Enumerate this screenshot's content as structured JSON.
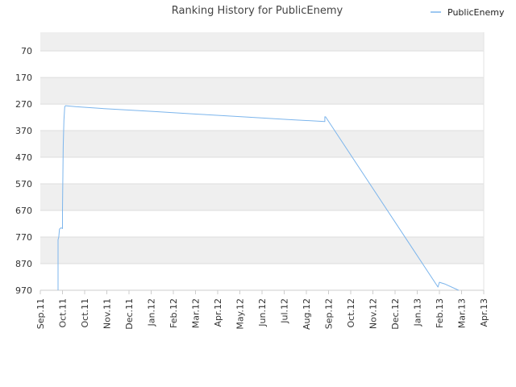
{
  "chart_data": {
    "type": "line",
    "title": "Ranking History for PublicEnemy",
    "xlabel": "",
    "ylabel": "",
    "y_inverted": true,
    "ylim": [
      0,
      970
    ],
    "y_ticks": [
      70,
      170,
      270,
      370,
      470,
      570,
      670,
      770,
      870,
      970
    ],
    "x_tick_labels": [
      "Sep.11",
      "Oct.11",
      "Oct.11",
      "Nov.11",
      "Dec.11",
      "Jan.12",
      "Feb.12",
      "Mar.12",
      "Apr.12",
      "May.12",
      "Jun.12",
      "Jul.12",
      "Aug.12",
      "Sep.12",
      "Oct.12",
      "Nov.12",
      "Dec.12",
      "Jan.13",
      "Feb.13",
      "Mar.13",
      "Apr.13"
    ],
    "x_tick_dates": [
      "2011-09-01",
      "2011-10-01",
      "2011-10-31",
      "2011-11-30",
      "2011-12-30",
      "2012-01-29",
      "2012-02-28",
      "2012-03-29",
      "2012-04-28",
      "2012-05-28",
      "2012-06-27",
      "2012-07-27",
      "2012-08-26",
      "2012-09-25",
      "2012-10-25",
      "2012-11-24",
      "2012-12-24",
      "2013-01-23",
      "2013-02-22",
      "2013-03-24",
      "2013-04-23"
    ],
    "grid": true,
    "legend_position": "top-right",
    "series": [
      {
        "name": "PublicEnemy",
        "color": "#7cb5ec",
        "points": [
          {
            "x": "2011-09-25",
            "y": 970
          },
          {
            "x": "2011-09-25",
            "y": 780
          },
          {
            "x": "2011-09-26",
            "y": 770
          },
          {
            "x": "2011-09-27",
            "y": 740
          },
          {
            "x": "2011-09-29",
            "y": 735
          },
          {
            "x": "2011-10-01",
            "y": 738
          },
          {
            "x": "2011-10-01",
            "y": 670
          },
          {
            "x": "2011-10-02",
            "y": 430
          },
          {
            "x": "2011-10-03",
            "y": 330
          },
          {
            "x": "2011-10-04",
            "y": 280
          },
          {
            "x": "2011-10-05",
            "y": 276
          },
          {
            "x": "2011-10-20",
            "y": 280
          },
          {
            "x": "2011-12-01",
            "y": 288
          },
          {
            "x": "2012-02-01",
            "y": 298
          },
          {
            "x": "2012-04-01",
            "y": 308
          },
          {
            "x": "2012-06-01",
            "y": 318
          },
          {
            "x": "2012-08-01",
            "y": 328
          },
          {
            "x": "2012-09-20",
            "y": 336
          },
          {
            "x": "2012-09-20",
            "y": 318
          },
          {
            "x": "2012-09-21",
            "y": 318
          },
          {
            "x": "2013-02-20",
            "y": 958
          },
          {
            "x": "2013-02-22",
            "y": 940
          },
          {
            "x": "2013-03-01",
            "y": 946
          },
          {
            "x": "2013-03-20",
            "y": 970
          }
        ]
      }
    ]
  }
}
